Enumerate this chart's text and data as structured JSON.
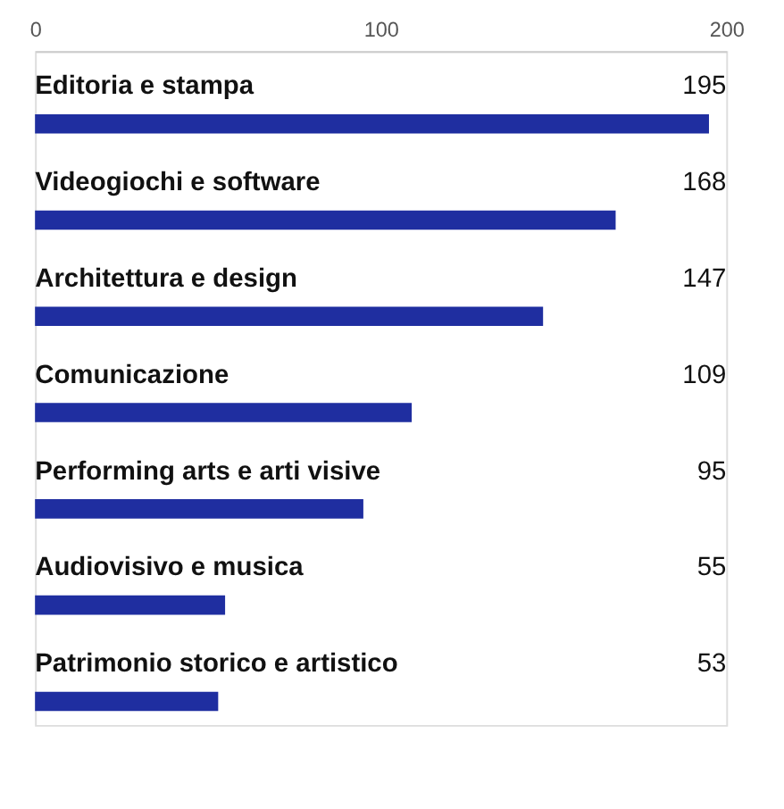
{
  "chart_data": {
    "type": "bar",
    "orientation": "horizontal",
    "categories": [
      "Editoria e stampa",
      "Videogiochi e software",
      "Architettura e design",
      "Comunicazione",
      "Performing arts e arti visive",
      "Audiovisivo e musica",
      "Patrimonio storico e artistico"
    ],
    "values": [
      195,
      168,
      147,
      109,
      95,
      55,
      53
    ],
    "color": "#1f2ea0",
    "xlim": [
      0,
      200
    ],
    "xticks": [
      0,
      100,
      200
    ],
    "data_labels": true,
    "grid": false
  }
}
